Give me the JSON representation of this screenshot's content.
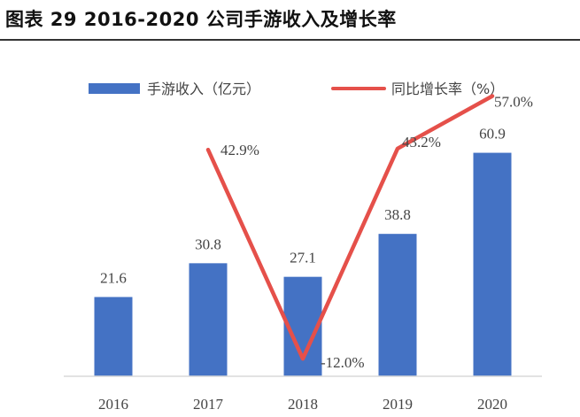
{
  "title": "图表 29 2016-2020 公司手游收入及增长率",
  "colors": {
    "bar": "#4472C4",
    "line": "#E5504A",
    "axis": "#d9d9d9",
    "text": "#444444"
  },
  "chart_data": {
    "type": "bar",
    "categories": [
      "2016",
      "2017",
      "2018",
      "2019",
      "2020"
    ],
    "series": [
      {
        "name": "手游收入（亿元）",
        "type": "bar",
        "axis": "left",
        "values": [
          21.6,
          30.8,
          27.1,
          38.8,
          60.9
        ],
        "labels": [
          "21.6",
          "30.8",
          "27.1",
          "38.8",
          "60.9"
        ]
      },
      {
        "name": "同比增长率（%）",
        "type": "line",
        "axis": "right",
        "values": [
          null,
          42.9,
          -12.0,
          43.2,
          57.0
        ],
        "labels": [
          "",
          "42.9%",
          "-12.0%",
          "43.2%",
          "57.0%"
        ]
      }
    ],
    "ylim_left": [
      0,
      70
    ],
    "ylim_right_percent": [
      -20,
      70
    ],
    "legend_position": "top",
    "grid": false
  }
}
